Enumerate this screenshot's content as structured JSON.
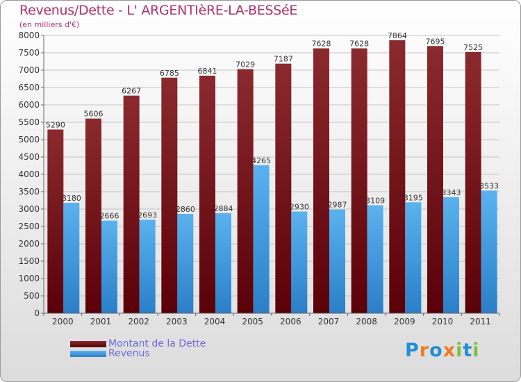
{
  "title": "Revenus/Dette - L' ARGENTIèRE-LA-BESSéE",
  "subtitle": "(en milliers d'€)",
  "brand": "Proxiti",
  "colors": {
    "title": "#b0306a",
    "debt": "#7a1a1f",
    "revenue": "#4aa3e6",
    "legend_text": "#6a6ae0"
  },
  "chart_data": {
    "type": "bar",
    "categories": [
      "2000",
      "2001",
      "2002",
      "2003",
      "2004",
      "2005",
      "2006",
      "2007",
      "2008",
      "2009",
      "2010",
      "2011"
    ],
    "series": [
      {
        "name": "Montant de la Dette",
        "values": [
          5290,
          5606,
          6267,
          6785,
          6841,
          7029,
          7187,
          7628,
          7628,
          7864,
          7695,
          7525
        ]
      },
      {
        "name": "Revenus",
        "values": [
          3180,
          2666,
          2693,
          2860,
          2884,
          4265,
          2930,
          2987,
          3109,
          3195,
          3343,
          3533
        ]
      }
    ],
    "yticks": [
      0,
      500,
      1000,
      1500,
      2000,
      2500,
      3000,
      3500,
      4000,
      4500,
      5000,
      5500,
      6000,
      6500,
      7000,
      7500,
      8000
    ],
    "ylim": [
      0,
      8000
    ],
    "legend": [
      "Montant de la Dette",
      "Revenus"
    ]
  }
}
